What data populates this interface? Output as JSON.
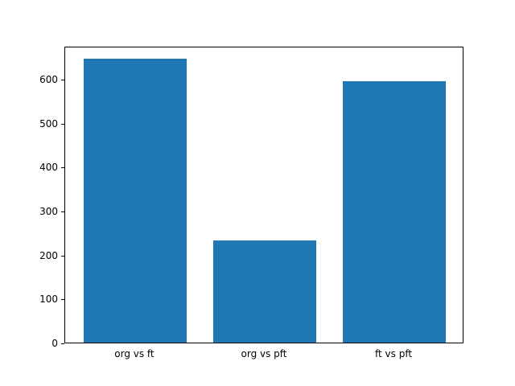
{
  "chart_data": {
    "type": "bar",
    "categories": [
      "org vs ft",
      "org vs pft",
      "ft vs pft"
    ],
    "values": [
      645,
      232,
      595
    ],
    "title": "",
    "xlabel": "",
    "ylabel": "",
    "ylim": [
      0,
      675
    ],
    "yticks": [
      0,
      100,
      200,
      300,
      400,
      500,
      600
    ],
    "bar_color": "#1f77b4",
    "bar_width_fraction": 0.8,
    "x_range": [
      -0.54,
      2.54
    ],
    "grid": false,
    "legend": null,
    "background_color": "#ffffff",
    "axis_color": "#000000"
  }
}
